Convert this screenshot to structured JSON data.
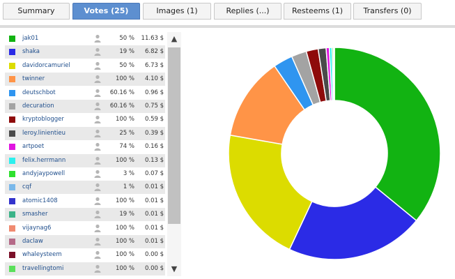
{
  "tabs": [
    {
      "label": "Summary",
      "active": false
    },
    {
      "label": "Votes (25)",
      "active": true
    },
    {
      "label": "Images (1)",
      "active": false
    },
    {
      "label": "Replies (...)",
      "active": false
    },
    {
      "label": "Resteems (1)",
      "active": false
    },
    {
      "label": "Transfers (0)",
      "active": false
    }
  ],
  "scrollbar": {
    "up_icon": "▲",
    "down_icon": "▼"
  },
  "votes": [
    {
      "voter": "jak01",
      "percent": "50 %",
      "value": "11.63 $",
      "color": "#12b312"
    },
    {
      "voter": "shaka",
      "percent": "19 %",
      "value": "6.82 $",
      "color": "#2b2be6"
    },
    {
      "voter": "davidorcamuriel",
      "percent": "50 %",
      "value": "6.73 $",
      "color": "#dcdc00"
    },
    {
      "voter": "twinner",
      "percent": "100 %",
      "value": "4.10 $",
      "color": "#ff9447"
    },
    {
      "voter": "deutschbot",
      "percent": "60.16 %",
      "value": "0.96 $",
      "color": "#2f95f0"
    },
    {
      "voter": "decuration",
      "percent": "60.16 %",
      "value": "0.75 $",
      "color": "#a3a3a3"
    },
    {
      "voter": "kryptoblogger",
      "percent": "100 %",
      "value": "0.59 $",
      "color": "#8e0b0b"
    },
    {
      "voter": "leroy.linientieu",
      "percent": "25 %",
      "value": "0.39 $",
      "color": "#4a4a4a"
    },
    {
      "voter": "artpoet",
      "percent": "74 %",
      "value": "0.16 $",
      "color": "#e014e0"
    },
    {
      "voter": "felix.herrmann",
      "percent": "100 %",
      "value": "0.13 $",
      "color": "#2bf0ee"
    },
    {
      "voter": "andyjaypowell",
      "percent": "3 %",
      "value": "0.07 $",
      "color": "#2ee02e"
    },
    {
      "voter": "cqf",
      "percent": "1 %",
      "value": "0.01 $",
      "color": "#7ab8ea"
    },
    {
      "voter": "atomic1408",
      "percent": "100 %",
      "value": "0.01 $",
      "color": "#3333cc"
    },
    {
      "voter": "smasher",
      "percent": "19 %",
      "value": "0.01 $",
      "color": "#3bb388"
    },
    {
      "voter": "vijaynag6",
      "percent": "100 %",
      "value": "0.01 $",
      "color": "#f08a70"
    },
    {
      "voter": "daclaw",
      "percent": "100 %",
      "value": "0.01 $",
      "color": "#b56a88"
    },
    {
      "voter": "whaleysteem",
      "percent": "100 %",
      "value": "0.00 $",
      "color": "#7a1029"
    },
    {
      "voter": "travellingtomi",
      "percent": "100 %",
      "value": "0.00 $",
      "color": "#5be05b"
    }
  ],
  "chart_data": {
    "type": "pie",
    "donut": true,
    "labels": [
      "jak01",
      "shaka",
      "davidorcamuriel",
      "twinner",
      "deutschbot",
      "decuration",
      "kryptoblogger",
      "leroy.linientieu",
      "artpoet",
      "felix.herrmann",
      "andyjaypowell",
      "cqf",
      "atomic1408",
      "smasher",
      "vijaynag6",
      "daclaw",
      "whaleysteem",
      "travellingtomi"
    ],
    "values": [
      11.63,
      6.82,
      6.73,
      4.1,
      0.96,
      0.75,
      0.59,
      0.39,
      0.16,
      0.13,
      0.07,
      0.01,
      0.01,
      0.01,
      0.01,
      0.01,
      0.0,
      0.0
    ],
    "colors": [
      "#12b312",
      "#2b2be6",
      "#dcdc00",
      "#ff9447",
      "#2f95f0",
      "#a3a3a3",
      "#8e0b0b",
      "#4a4a4a",
      "#e014e0",
      "#2bf0ee",
      "#2ee02e",
      "#7ab8ea",
      "#3333cc",
      "#3bb388",
      "#f08a70",
      "#b56a88",
      "#7a1029",
      "#5be05b"
    ],
    "unit": "$"
  }
}
